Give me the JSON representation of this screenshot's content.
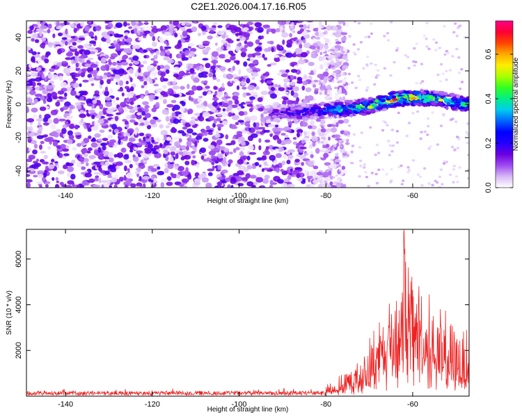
{
  "title": "C2E1.2026.004.17.16.R05",
  "chart_data": [
    {
      "type": "heatmap",
      "xlabel": "Height of straight line (km)",
      "ylabel": "Frequency (Hz)",
      "xlim": [
        -149,
        -47
      ],
      "ylim": [
        -50,
        50
      ],
      "xticks": [
        -140,
        -120,
        -100,
        -80,
        -60
      ],
      "yticks": [
        -40,
        -20,
        0,
        20,
        40
      ],
      "colorbar": {
        "label": "Normalized spectral amplitude",
        "range": [
          0.0,
          0.75
        ],
        "ticks": [
          0.0,
          0.2,
          0.4,
          0.6
        ],
        "colormap": [
          "#ffffff",
          "#d7b8f5",
          "#9f4bf0",
          "#6b00e0",
          "#2200ff",
          "#0000ff",
          "#0066ff",
          "#00ccee",
          "#00ee88",
          "#33ff22",
          "#aaff00",
          "#ffee00",
          "#ffaa00",
          "#ff4400",
          "#ff0033",
          "#ff0088"
        ]
      },
      "signal_track": {
        "x": [
          -94,
          -88,
          -82,
          -76,
          -70,
          -64,
          -58,
          -52,
          -47
        ],
        "frequency_hz": [
          -6,
          -5,
          -4,
          -3,
          -1,
          3,
          4,
          2,
          0
        ],
        "peak_amplitude": [
          0.15,
          0.25,
          0.3,
          0.45,
          0.55,
          0.72,
          0.55,
          0.5,
          0.45
        ]
      },
      "noise_region": {
        "x_from": -149,
        "x_to": -78,
        "typical_amplitude": [
          0.05,
          0.15
        ]
      }
    },
    {
      "type": "line",
      "xlabel": "Height of straight line (km)",
      "ylabel": "SNR (10 * v/v)",
      "xlim": [
        -149,
        -47
      ],
      "ylim": [
        0,
        7300
      ],
      "xticks": [
        -140,
        -120,
        -100,
        -80,
        -60
      ],
      "yticks": [
        2000,
        4000,
        6000
      ],
      "series": [
        {
          "name": "SNR",
          "color": "#ee2222",
          "envelope_x": [
            -149,
            -120,
            -100,
            -82,
            -78,
            -75,
            -72,
            -70,
            -68,
            -66,
            -64,
            -62.5,
            -62,
            -60,
            -59,
            -57,
            -55,
            -53,
            -51,
            -49,
            -47
          ],
          "envelope_baseline": [
            100,
            100,
            100,
            120,
            200,
            300,
            500,
            800,
            1100,
            1500,
            1800,
            1900,
            2000,
            1900,
            1800,
            1500,
            1300,
            1100,
            900,
            700,
            600
          ],
          "envelope_peak": [
            300,
            320,
            300,
            350,
            700,
            1200,
            1700,
            2500,
            3800,
            4500,
            5300,
            6000,
            7300,
            5500,
            6400,
            4800,
            4000,
            3600,
            3400,
            3000,
            3400
          ]
        }
      ]
    }
  ],
  "colors": {
    "signal": "#ee2222",
    "axis": "#000000",
    "background": "#ffffff"
  }
}
